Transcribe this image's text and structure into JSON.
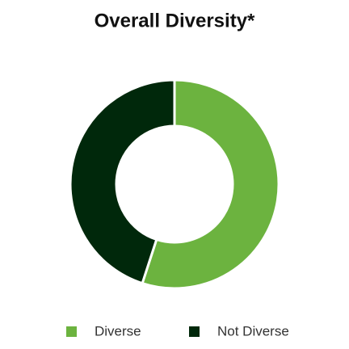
{
  "chart_data": {
    "type": "donut",
    "title": "Overall Diversity*",
    "categories": [
      "Diverse",
      "Not Diverse"
    ],
    "values": [
      55,
      45
    ],
    "colors": [
      "#6cb33f",
      "#00280b"
    ],
    "legend": "bottom"
  }
}
